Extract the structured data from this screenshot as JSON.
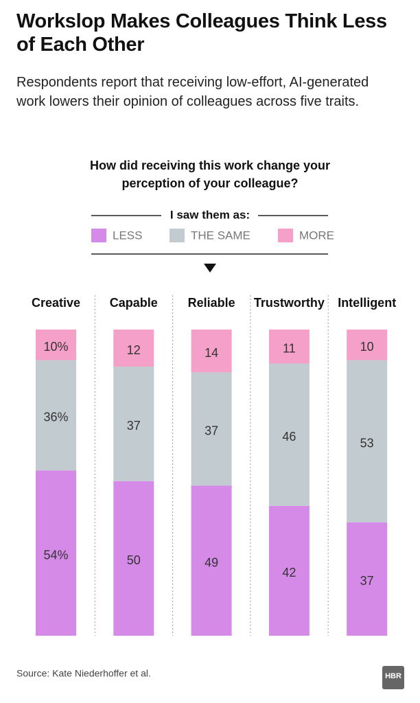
{
  "chart_data": {
    "type": "stacked_bar",
    "title": "Workslop Makes Colleagues Think Less of Each Other",
    "subtitle": "Respondents report that receiving low-effort, AI-generated work lowers their opinion of colleagues across five traits.",
    "question": "How did receiving this work change your perception of your colleague?",
    "legend_title": "I saw them as:",
    "categories": [
      "Creative",
      "Capable",
      "Reliable",
      "Trustworthy",
      "Intelligent"
    ],
    "series": [
      {
        "name": "LESS",
        "color": "#d48ae6",
        "values": [
          54,
          50,
          49,
          42,
          37
        ],
        "value_labels": [
          "54%",
          "50",
          "49",
          "42",
          "37"
        ]
      },
      {
        "name": "THE SAME",
        "color": "#c2cbd0",
        "values": [
          36,
          37,
          37,
          46,
          53
        ],
        "value_labels": [
          "36%",
          "37",
          "37",
          "46",
          "53"
        ]
      },
      {
        "name": "MORE",
        "color": "#f5a0c8",
        "values": [
          10,
          12,
          14,
          11,
          10
        ],
        "value_labels": [
          "10%",
          "12",
          "14",
          "11",
          "10"
        ]
      }
    ],
    "source": "Source: Kate Niederhoffer et al.",
    "logo": "HBR"
  }
}
